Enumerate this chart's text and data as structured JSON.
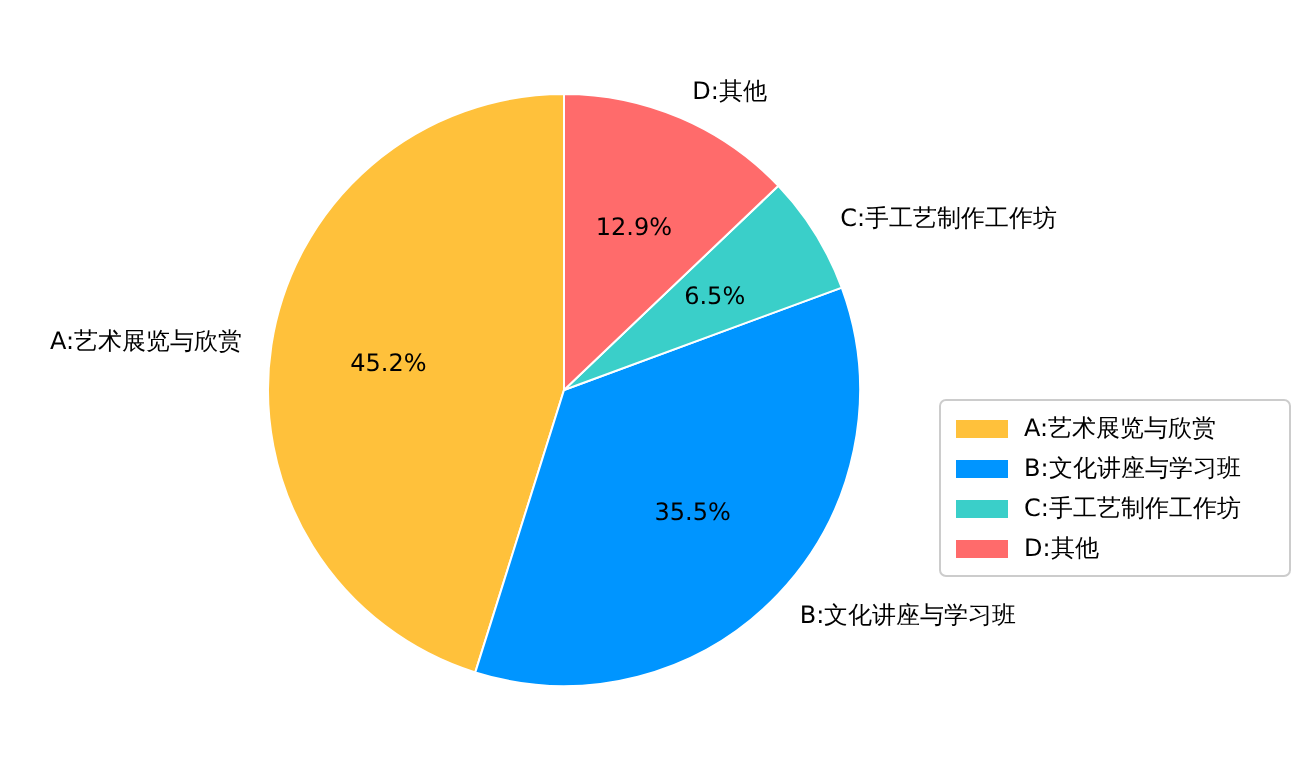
{
  "chart_data": {
    "type": "pie",
    "categories": [
      "A:艺术展览与欣赏",
      "B:文化讲座与学习班",
      "C:手工艺制作工作坊",
      "D:其他"
    ],
    "values": [
      45.2,
      35.5,
      6.5,
      12.9
    ],
    "colors": [
      "#ffc13b",
      "#0095ff",
      "#3acfc9",
      "#ff6b6b"
    ],
    "value_labels": [
      "45.2%",
      "35.5%",
      "6.5%",
      "12.9%"
    ],
    "legend": "right"
  }
}
